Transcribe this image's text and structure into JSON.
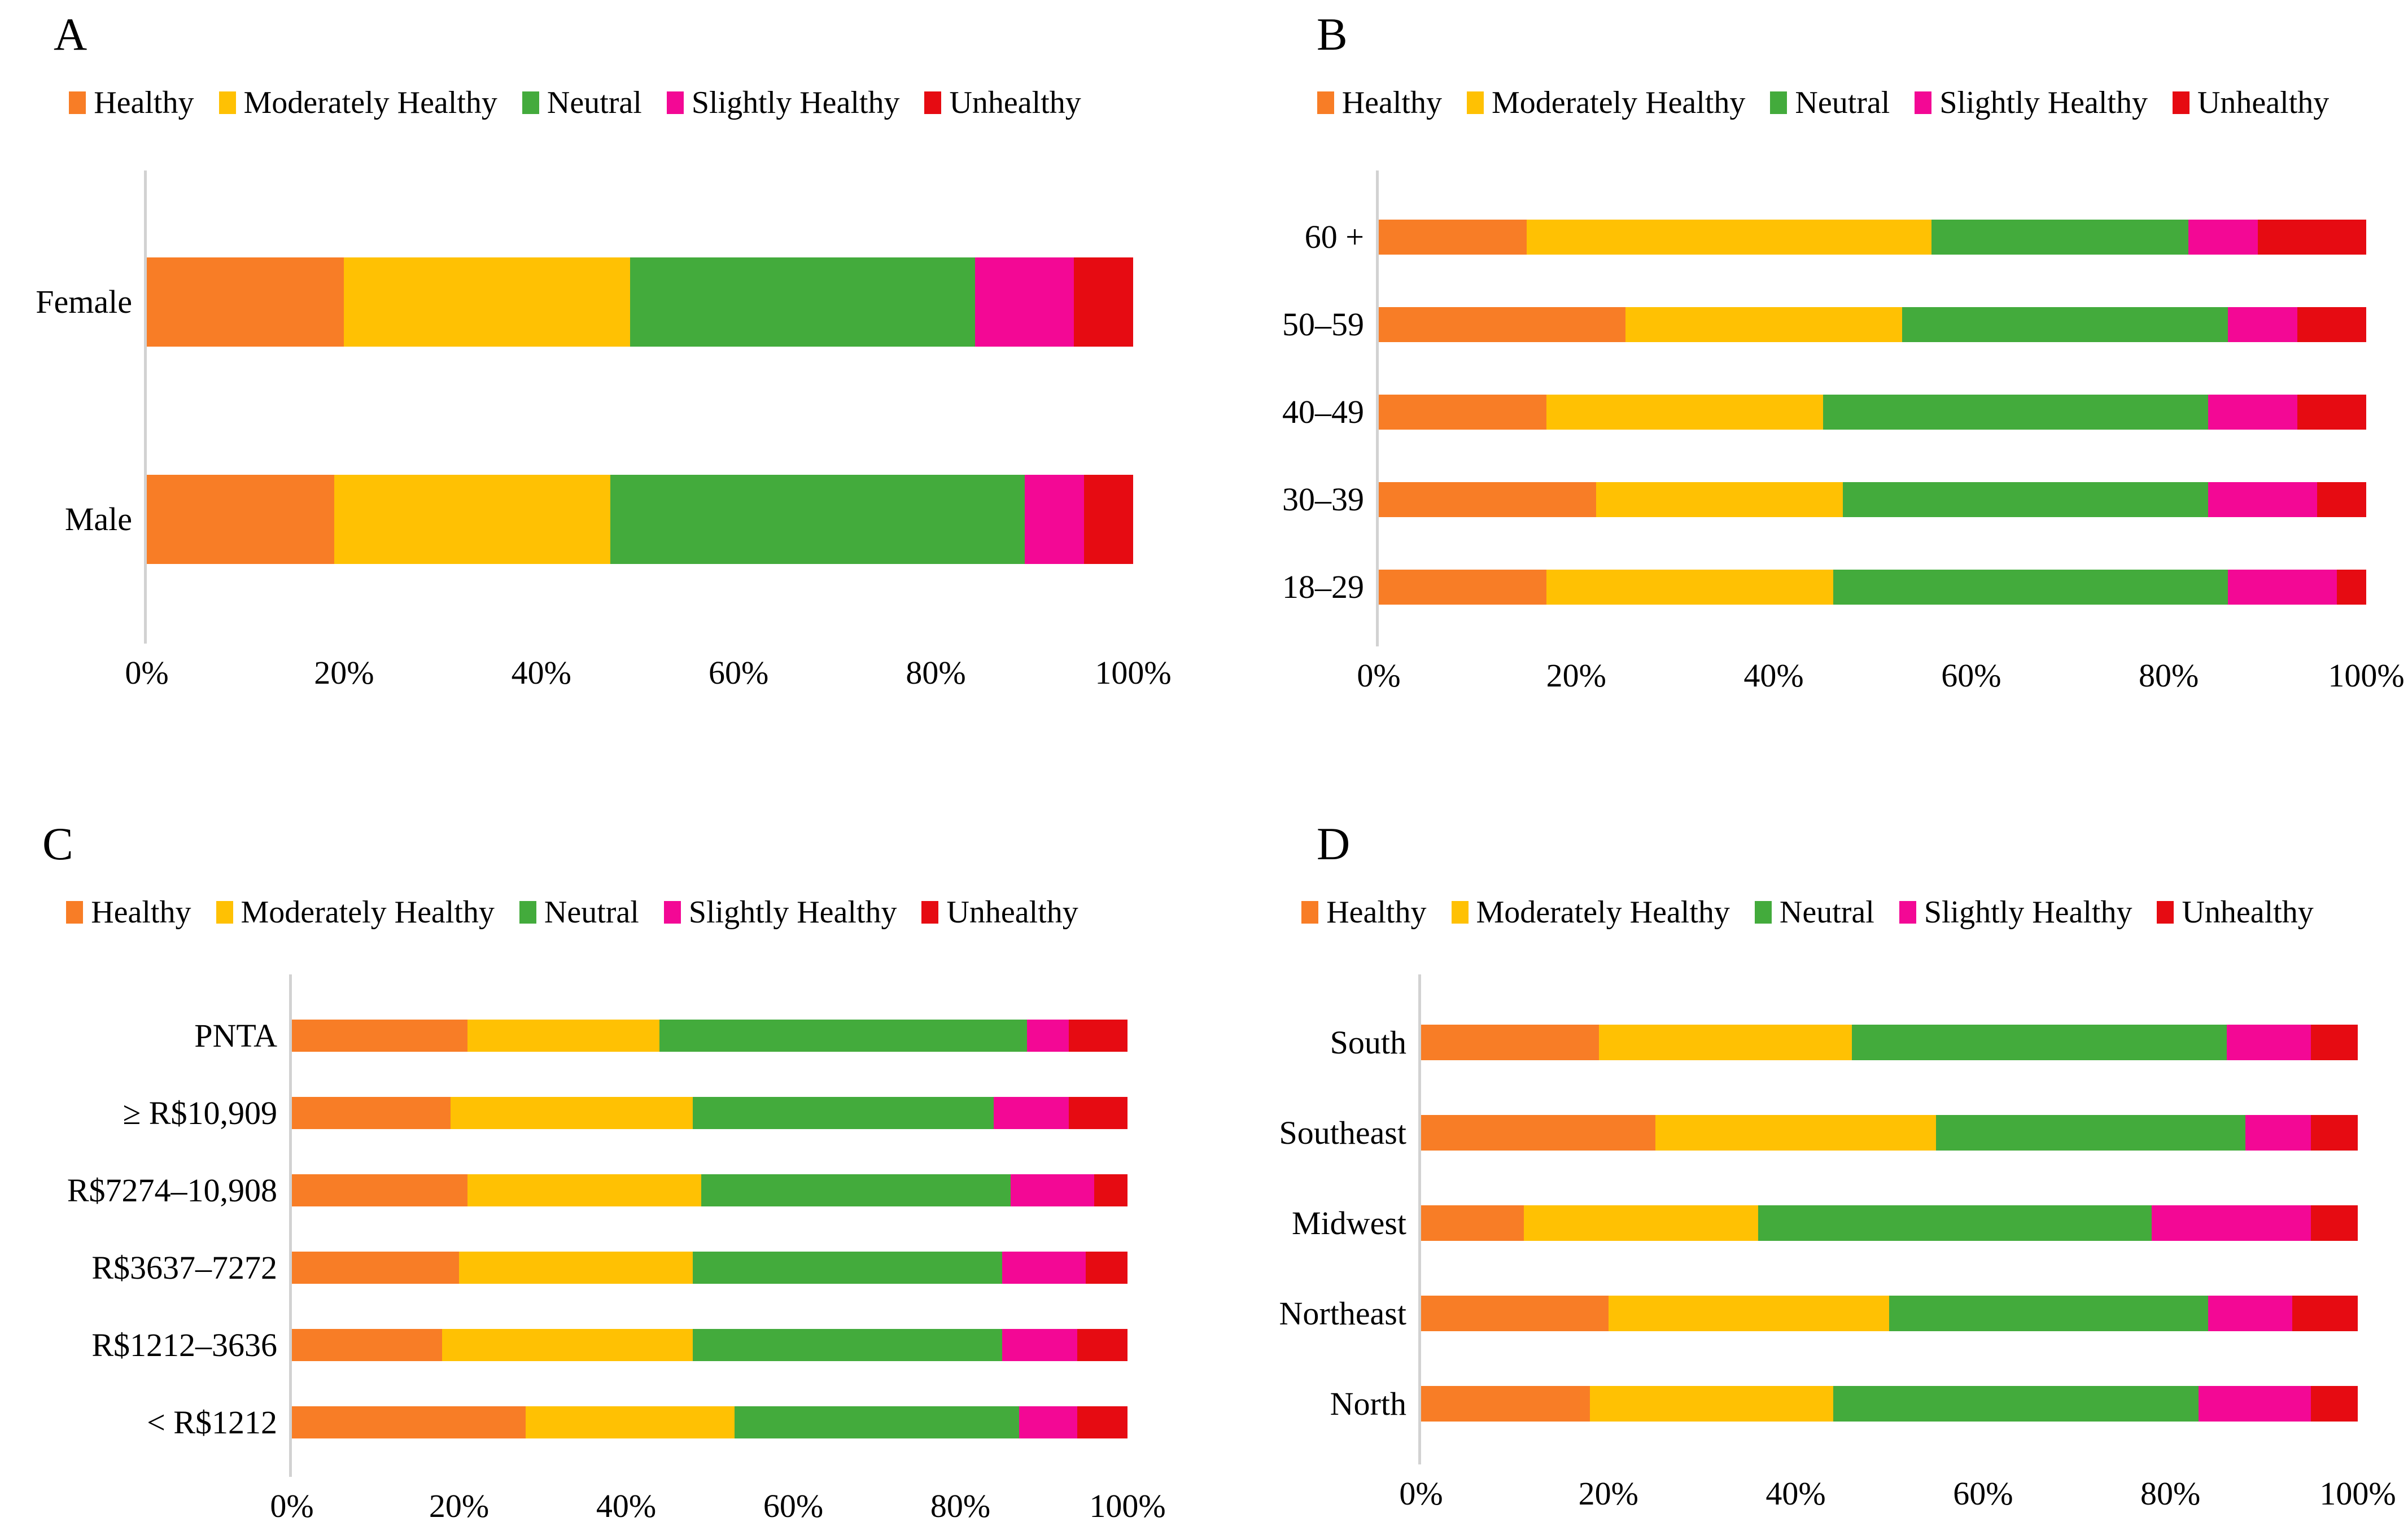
{
  "figure_title": "",
  "colors": {
    "Healthy": "#F87D26",
    "Moderately Healthy": "#FFC103",
    "Neutral": "#43AB3C",
    "Slightly Healthy": "#F30895",
    "Unhealthy": "#E60B12",
    "axis_line": "#D2D2D2"
  },
  "legend": {
    "items": [
      {
        "label": "Healthy",
        "color": "#F87D26"
      },
      {
        "label": "Moderately Healthy",
        "color": "#FFC103"
      },
      {
        "label": "Neutral",
        "color": "#43AB3C"
      },
      {
        "label": "Slightly Healthy",
        "color": "#F30895"
      },
      {
        "label": "Unhealthy",
        "color": "#E60B12"
      }
    ]
  },
  "x_ticks": [
    "0%",
    "20%",
    "40%",
    "60%",
    "80%",
    "100%"
  ],
  "chart_data": [
    {
      "panel": "A",
      "type": "bar",
      "stacked": true,
      "orientation": "horizontal",
      "unit": "percent",
      "xlim": [
        0,
        100
      ],
      "x_ticks": [
        "0%",
        "20%",
        "40%",
        "60%",
        "80%",
        "100%"
      ],
      "categories": [
        "Female",
        "Male"
      ],
      "series": [
        {
          "name": "Healthy",
          "values": [
            20,
            19
          ]
        },
        {
          "name": "Moderately Healthy",
          "values": [
            29,
            28
          ]
        },
        {
          "name": "Neutral",
          "values": [
            35,
            42
          ]
        },
        {
          "name": "Slightly Healthy",
          "values": [
            10,
            6
          ]
        },
        {
          "name": "Unhealthy",
          "values": [
            6,
            5
          ]
        }
      ]
    },
    {
      "panel": "B",
      "type": "bar",
      "stacked": true,
      "orientation": "horizontal",
      "unit": "percent",
      "xlim": [
        0,
        100
      ],
      "x_ticks": [
        "0%",
        "20%",
        "40%",
        "60%",
        "80%",
        "100%"
      ],
      "categories": [
        "60 +",
        "50–59",
        "40–49",
        "30–39",
        "18–29"
      ],
      "series": [
        {
          "name": "Healthy",
          "values": [
            15,
            25,
            17,
            22,
            17
          ]
        },
        {
          "name": "Moderately Healthy",
          "values": [
            41,
            28,
            28,
            25,
            29
          ]
        },
        {
          "name": "Neutral",
          "values": [
            26,
            33,
            39,
            37,
            40
          ]
        },
        {
          "name": "Slightly Healthy",
          "values": [
            7,
            7,
            9,
            11,
            11
          ]
        },
        {
          "name": "Unhealthy",
          "values": [
            11,
            7,
            7,
            5,
            3
          ]
        }
      ]
    },
    {
      "panel": "C",
      "type": "bar",
      "stacked": true,
      "orientation": "horizontal",
      "unit": "percent",
      "xlim": [
        0,
        100
      ],
      "x_ticks": [
        "0%",
        "20%",
        "40%",
        "60%",
        "80%",
        "100%"
      ],
      "categories": [
        "PNTA",
        "≥ R$10,909",
        "R$7274–10,908",
        "R$3637–7272",
        "R$1212–3636",
        "< R$1212"
      ],
      "series": [
        {
          "name": "Healthy",
          "values": [
            21,
            19,
            21,
            20,
            18,
            28
          ]
        },
        {
          "name": "Moderately Healthy",
          "values": [
            23,
            29,
            28,
            28,
            30,
            25
          ]
        },
        {
          "name": "Neutral",
          "values": [
            44,
            36,
            37,
            37,
            37,
            34
          ]
        },
        {
          "name": "Slightly Healthy",
          "values": [
            5,
            9,
            10,
            10,
            9,
            7
          ]
        },
        {
          "name": "Unhealthy",
          "values": [
            7,
            7,
            4,
            5,
            6,
            6
          ]
        }
      ]
    },
    {
      "panel": "D",
      "type": "bar",
      "stacked": true,
      "orientation": "horizontal",
      "unit": "percent",
      "xlim": [
        0,
        100
      ],
      "x_ticks": [
        "0%",
        "20%",
        "40%",
        "60%",
        "80%",
        "100%"
      ],
      "categories": [
        "South",
        "Southeast",
        "Midwest",
        "Northeast",
        "North"
      ],
      "series": [
        {
          "name": "Healthy",
          "values": [
            19,
            25,
            11,
            20,
            18
          ]
        },
        {
          "name": "Moderately Healthy",
          "values": [
            27,
            30,
            25,
            30,
            26
          ]
        },
        {
          "name": "Neutral",
          "values": [
            40,
            33,
            42,
            34,
            39
          ]
        },
        {
          "name": "Slightly Healthy",
          "values": [
            9,
            7,
            17,
            9,
            12
          ]
        },
        {
          "name": "Unhealthy",
          "values": [
            5,
            5,
            5,
            7,
            5
          ]
        }
      ]
    }
  ]
}
